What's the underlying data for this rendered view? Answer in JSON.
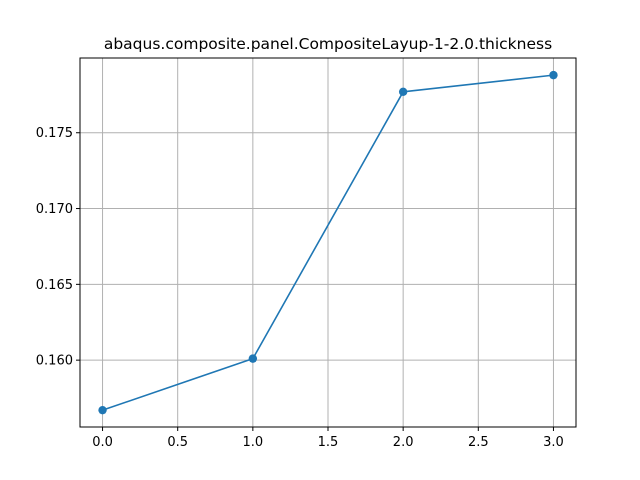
{
  "chart_data": {
    "type": "line",
    "title": "abaqus.composite.panel.CompositeLayup-1-2.0.thickness",
    "xlabel": "",
    "ylabel": "",
    "x": [
      0.0,
      1.0,
      2.0,
      3.0
    ],
    "series": [
      {
        "values": [
          0.1567,
          0.1601,
          0.1777,
          0.1788
        ],
        "color": "#1f77b4"
      }
    ],
    "xlim": [
      -0.15,
      3.15
    ],
    "ylim": [
      0.15559,
      0.17993
    ],
    "xticks": [
      0.0,
      0.5,
      1.0,
      1.5,
      2.0,
      2.5,
      3.0
    ],
    "xtick_labels": [
      "0.0",
      "0.5",
      "1.0",
      "1.5",
      "2.0",
      "2.5",
      "3.0"
    ],
    "yticks": [
      0.16,
      0.165,
      0.17,
      0.175
    ],
    "ytick_labels": [
      "0.160",
      "0.165",
      "0.170",
      "0.175"
    ],
    "grid": true,
    "marker": "circle",
    "line_color": "#1f77b4",
    "grid_color": "#b0b0b0"
  }
}
